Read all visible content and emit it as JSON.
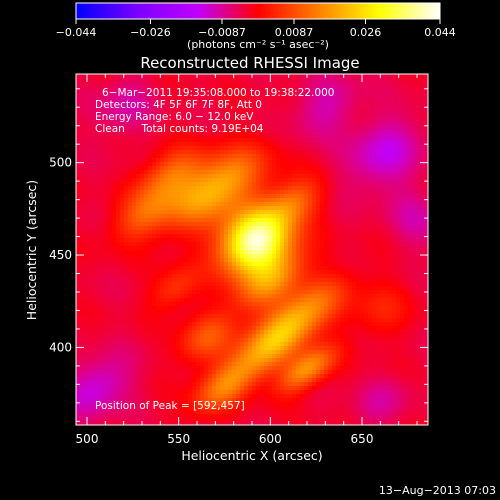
{
  "chart_data": {
    "type": "heatmap",
    "title": "Reconstructed RHESSI Image",
    "xlabel": "Heliocentric X (arcsec)",
    "ylabel": "Heliocentric Y (arcsec)",
    "xlim": [
      494,
      686
    ],
    "ylim": [
      358,
      548
    ],
    "x_ticks": [
      500,
      550,
      600,
      650
    ],
    "y_ticks": [
      400,
      450,
      500
    ],
    "colorbar": {
      "min": -0.044,
      "max": 0.044,
      "ticks": [
        -0.044,
        -0.026,
        -0.0087,
        0.0087,
        0.026,
        0.044
      ],
      "tick_labels": [
        "−0.044",
        "−0.026",
        "−0.0087",
        "0.0087",
        "0.026",
        "0.044"
      ],
      "units": "(photons cm⁻² s⁻¹ asec⁻²)",
      "colormap": [
        "#0000ff",
        "#7a00ff",
        "#c000ff",
        "#ff0000",
        "#ff8000",
        "#ffff00",
        "#ffffff"
      ]
    },
    "annotations": [
      "6−Mar−2011 19:35:08.000 to 19:38:22.000",
      "Detectors: 4F 5F 6F 7F 8F, Att 0",
      "Energy Range: 6.0 − 12.0 keV",
      "Clean     Total counts: 9.19E+04"
    ],
    "peak_label": "Position of Peak = [592,457]",
    "peak": [
      592,
      457
    ],
    "sources": [
      {
        "x": 592,
        "y": 457,
        "peak": 0.044,
        "sx": 14,
        "sy": 12
      },
      {
        "x": 570,
        "y": 486,
        "peak": 0.024,
        "sx": 20,
        "sy": 10
      },
      {
        "x": 545,
        "y": 493,
        "peak": 0.014,
        "sx": 14,
        "sy": 8
      },
      {
        "x": 532,
        "y": 472,
        "peak": 0.012,
        "sx": 14,
        "sy": 8
      },
      {
        "x": 612,
        "y": 478,
        "peak": 0.014,
        "sx": 12,
        "sy": 8
      },
      {
        "x": 600,
        "y": 435,
        "peak": 0.015,
        "sx": 16,
        "sy": 8
      },
      {
        "x": 615,
        "y": 418,
        "peak": 0.016,
        "sx": 20,
        "sy": 8
      },
      {
        "x": 600,
        "y": 400,
        "peak": 0.018,
        "sx": 22,
        "sy": 8
      },
      {
        "x": 620,
        "y": 388,
        "peak": 0.02,
        "sx": 12,
        "sy": 6
      },
      {
        "x": 565,
        "y": 405,
        "peak": 0.012,
        "sx": 12,
        "sy": 8
      },
      {
        "x": 575,
        "y": 378,
        "peak": 0.013,
        "sx": 14,
        "sy": 7
      },
      {
        "x": 548,
        "y": 432,
        "peak": 0.009,
        "sx": 10,
        "sy": 7
      },
      {
        "x": 660,
        "y": 420,
        "peak": 0.006,
        "sx": 12,
        "sy": 10
      },
      {
        "x": 505,
        "y": 378,
        "peak": -0.01,
        "sx": 14,
        "sy": 10
      },
      {
        "x": 662,
        "y": 505,
        "peak": -0.01,
        "sx": 16,
        "sy": 12
      },
      {
        "x": 630,
        "y": 530,
        "peak": -0.007,
        "sx": 14,
        "sy": 10
      },
      {
        "x": 520,
        "y": 530,
        "peak": -0.006,
        "sx": 12,
        "sy": 10
      },
      {
        "x": 680,
        "y": 470,
        "peak": -0.006,
        "sx": 10,
        "sy": 12
      },
      {
        "x": 660,
        "y": 370,
        "peak": -0.005,
        "sx": 12,
        "sy": 8
      }
    ],
    "background": -0.003,
    "grid": false
  },
  "footer": {
    "timestamp": "13−Aug−2013 07:03"
  }
}
